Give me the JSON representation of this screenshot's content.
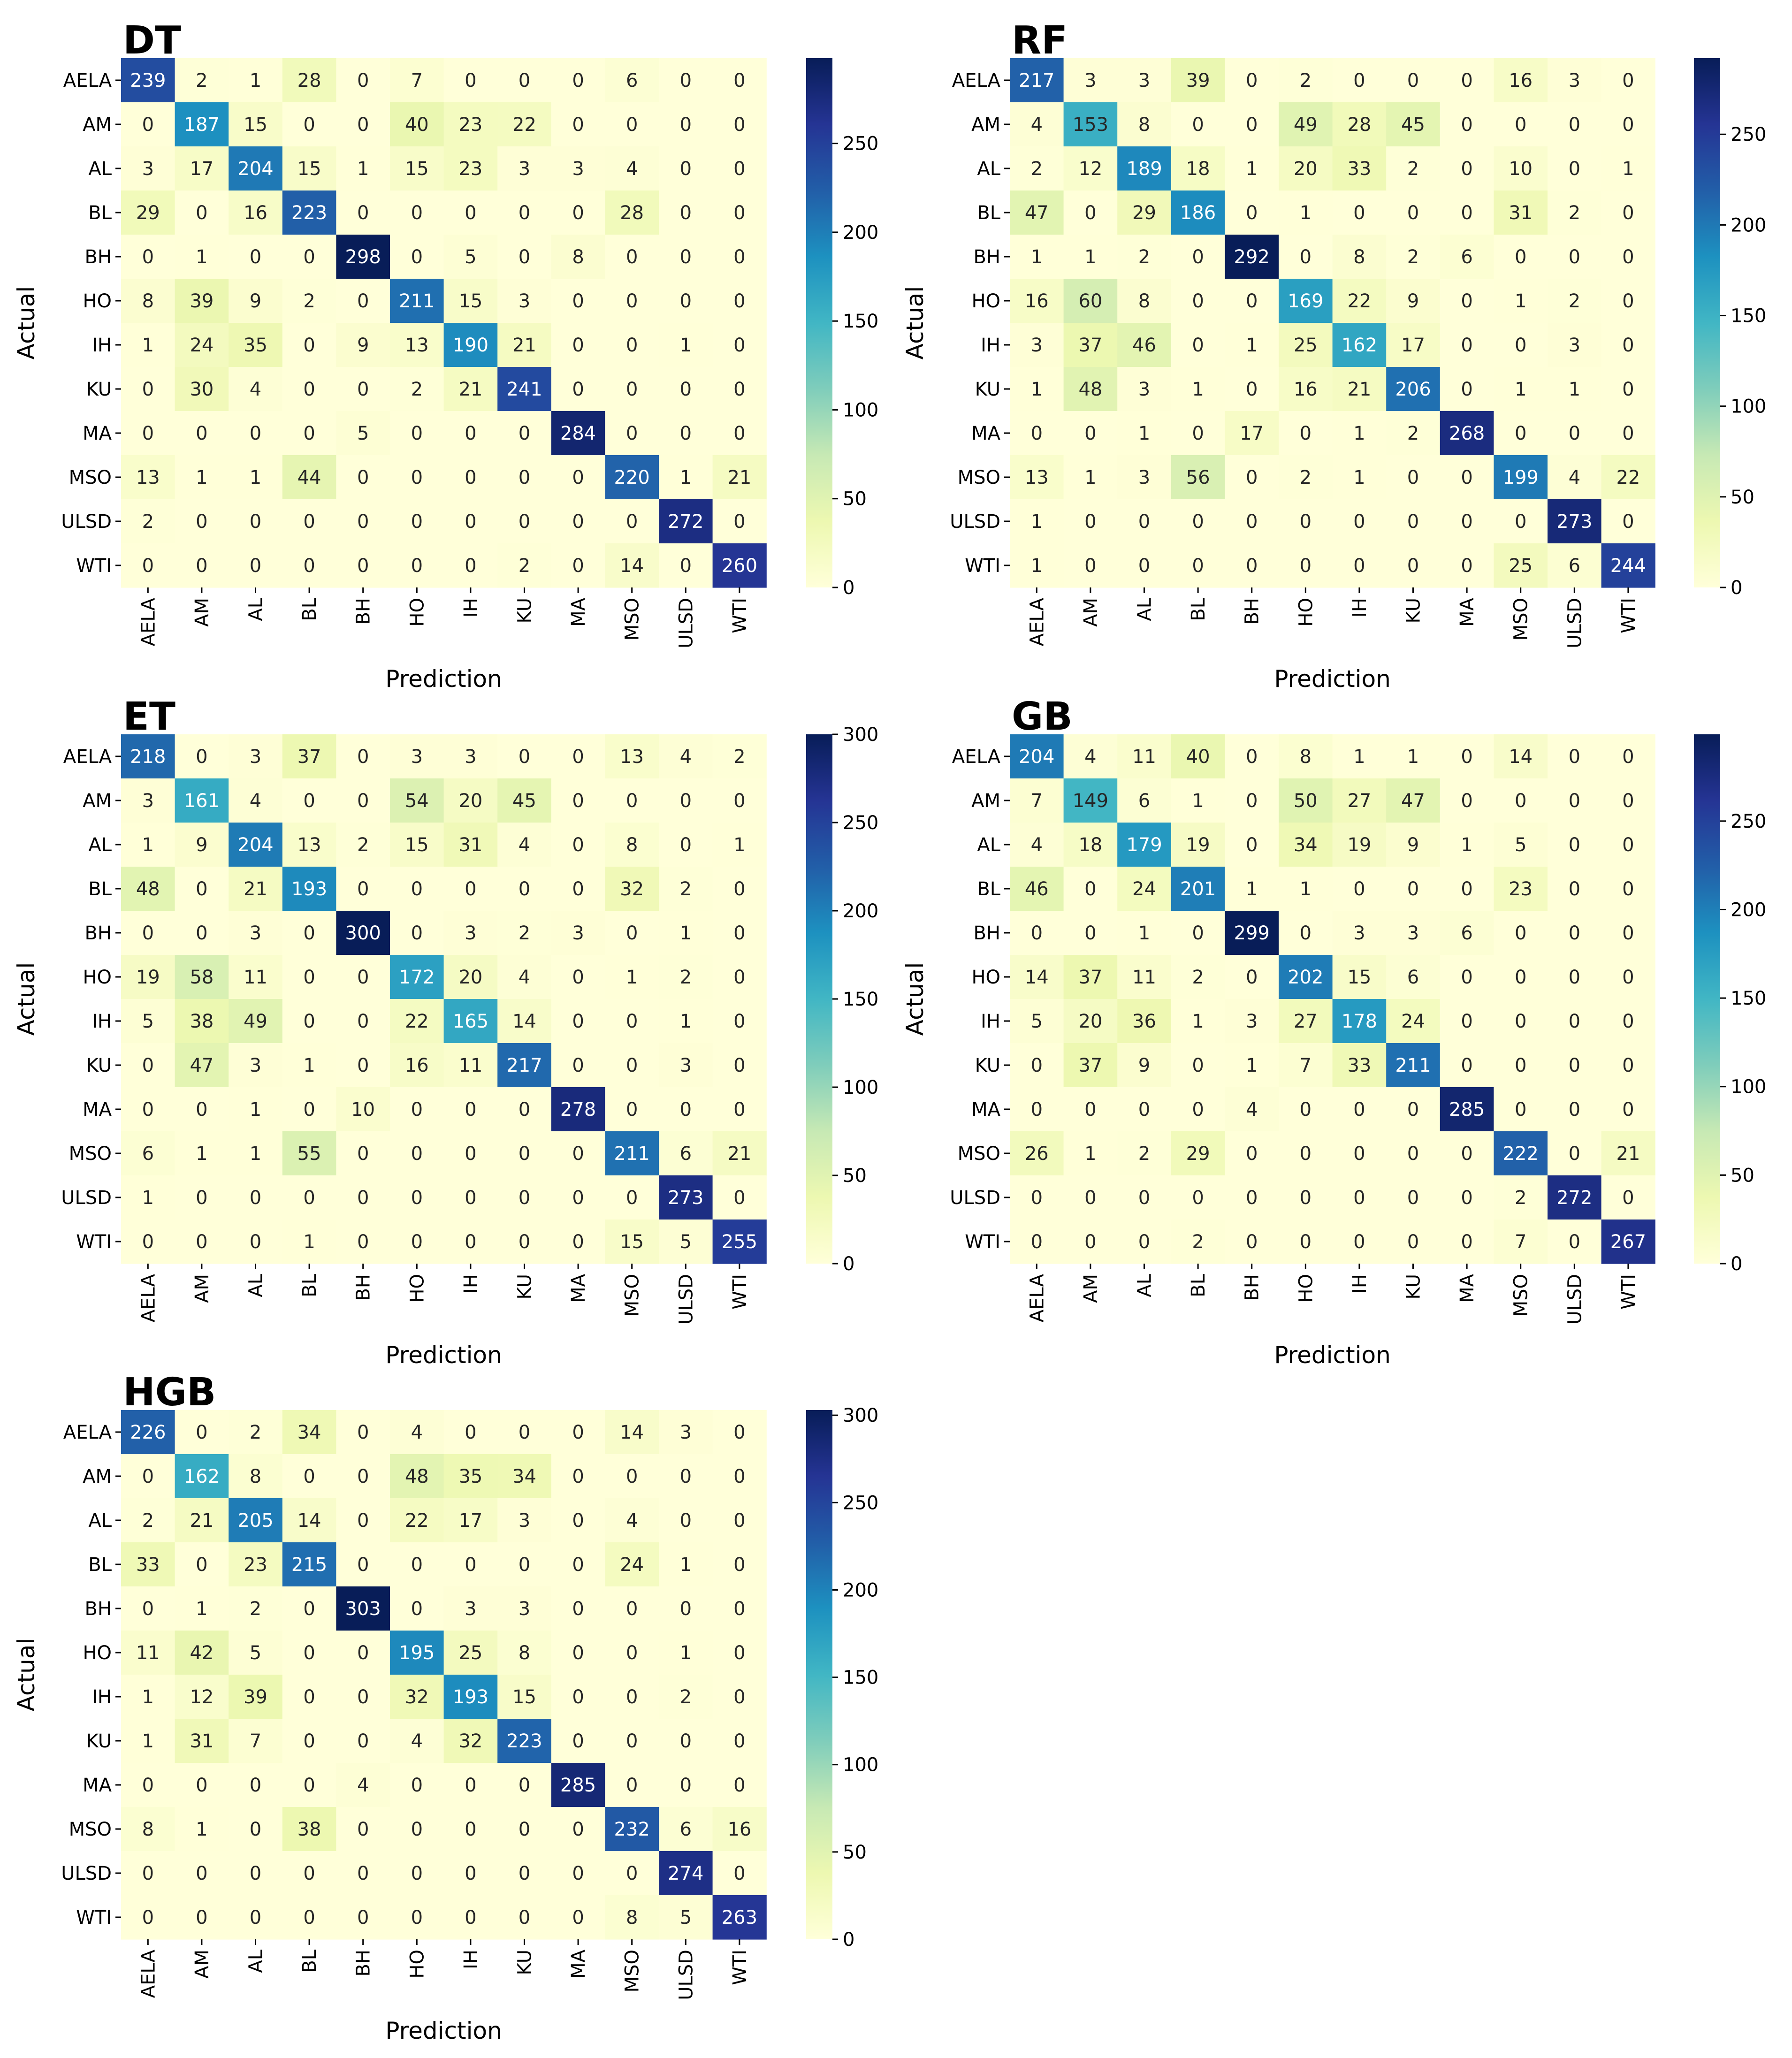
{
  "labels": [
    "AELA",
    "AM",
    "AL",
    "BL",
    "BH",
    "HO",
    "IH",
    "KU",
    "MA",
    "MSO",
    "ULSD",
    "WTI"
  ],
  "chart_data": [
    {
      "type": "heatmap",
      "title": "DT",
      "xlabel": "Prediction",
      "ylabel": "Actual",
      "colorbar_range": [
        0,
        298
      ],
      "colorbar_ticks": [
        0,
        50,
        100,
        150,
        200,
        250
      ],
      "matrix": [
        [
          239,
          2,
          1,
          28,
          0,
          7,
          0,
          0,
          0,
          6,
          0,
          0
        ],
        [
          0,
          187,
          15,
          0,
          0,
          40,
          23,
          22,
          0,
          0,
          0,
          0
        ],
        [
          3,
          17,
          204,
          15,
          1,
          15,
          23,
          3,
          3,
          4,
          0,
          0
        ],
        [
          29,
          0,
          16,
          223,
          0,
          0,
          0,
          0,
          0,
          28,
          0,
          0
        ],
        [
          0,
          1,
          0,
          0,
          298,
          0,
          5,
          0,
          8,
          0,
          0,
          0
        ],
        [
          8,
          39,
          9,
          2,
          0,
          211,
          15,
          3,
          0,
          0,
          0,
          0
        ],
        [
          1,
          24,
          35,
          0,
          9,
          13,
          190,
          21,
          0,
          0,
          1,
          0
        ],
        [
          0,
          30,
          4,
          0,
          0,
          2,
          21,
          241,
          0,
          0,
          0,
          0
        ],
        [
          0,
          0,
          0,
          0,
          5,
          0,
          0,
          0,
          284,
          0,
          0,
          0
        ],
        [
          13,
          1,
          1,
          44,
          0,
          0,
          0,
          0,
          0,
          220,
          1,
          21
        ],
        [
          2,
          0,
          0,
          0,
          0,
          0,
          0,
          0,
          0,
          0,
          272,
          0
        ],
        [
          0,
          0,
          0,
          0,
          0,
          0,
          0,
          2,
          0,
          14,
          0,
          260
        ]
      ]
    },
    {
      "type": "heatmap",
      "title": "RF",
      "xlabel": "Prediction",
      "ylabel": "Actual",
      "colorbar_range": [
        0,
        292
      ],
      "colorbar_ticks": [
        0,
        50,
        100,
        150,
        200,
        250
      ],
      "matrix": [
        [
          217,
          3,
          3,
          39,
          0,
          2,
          0,
          0,
          0,
          16,
          3,
          0
        ],
        [
          4,
          153,
          8,
          0,
          0,
          49,
          28,
          45,
          0,
          0,
          0,
          0
        ],
        [
          2,
          12,
          189,
          18,
          1,
          20,
          33,
          2,
          0,
          10,
          0,
          1
        ],
        [
          47,
          0,
          29,
          186,
          0,
          1,
          0,
          0,
          0,
          31,
          2,
          0
        ],
        [
          1,
          1,
          2,
          0,
          292,
          0,
          8,
          2,
          6,
          0,
          0,
          0
        ],
        [
          16,
          60,
          8,
          0,
          0,
          169,
          22,
          9,
          0,
          1,
          2,
          0
        ],
        [
          3,
          37,
          46,
          0,
          1,
          25,
          162,
          17,
          0,
          0,
          3,
          0
        ],
        [
          1,
          48,
          3,
          1,
          0,
          16,
          21,
          206,
          0,
          1,
          1,
          0
        ],
        [
          0,
          0,
          1,
          0,
          17,
          0,
          1,
          2,
          268,
          0,
          0,
          0
        ],
        [
          13,
          1,
          3,
          56,
          0,
          2,
          1,
          0,
          0,
          199,
          4,
          22
        ],
        [
          1,
          0,
          0,
          0,
          0,
          0,
          0,
          0,
          0,
          0,
          273,
          0
        ],
        [
          1,
          0,
          0,
          0,
          0,
          0,
          0,
          0,
          0,
          25,
          6,
          244
        ]
      ]
    },
    {
      "type": "heatmap",
      "title": "ET",
      "xlabel": "Prediction",
      "ylabel": "Actual",
      "colorbar_range": [
        0,
        300
      ],
      "colorbar_ticks": [
        0,
        50,
        100,
        150,
        200,
        250,
        300
      ],
      "matrix": [
        [
          218,
          0,
          3,
          37,
          0,
          3,
          3,
          0,
          0,
          13,
          4,
          2
        ],
        [
          3,
          161,
          4,
          0,
          0,
          54,
          20,
          45,
          0,
          0,
          0,
          0
        ],
        [
          1,
          9,
          204,
          13,
          2,
          15,
          31,
          4,
          0,
          8,
          0,
          1
        ],
        [
          48,
          0,
          21,
          193,
          0,
          0,
          0,
          0,
          0,
          32,
          2,
          0
        ],
        [
          0,
          0,
          3,
          0,
          300,
          0,
          3,
          2,
          3,
          0,
          1,
          0
        ],
        [
          19,
          58,
          11,
          0,
          0,
          172,
          20,
          4,
          0,
          1,
          2,
          0
        ],
        [
          5,
          38,
          49,
          0,
          0,
          22,
          165,
          14,
          0,
          0,
          1,
          0
        ],
        [
          0,
          47,
          3,
          1,
          0,
          16,
          11,
          217,
          0,
          0,
          3,
          0
        ],
        [
          0,
          0,
          1,
          0,
          10,
          0,
          0,
          0,
          278,
          0,
          0,
          0
        ],
        [
          6,
          1,
          1,
          55,
          0,
          0,
          0,
          0,
          0,
          211,
          6,
          21
        ],
        [
          1,
          0,
          0,
          0,
          0,
          0,
          0,
          0,
          0,
          0,
          273,
          0
        ],
        [
          0,
          0,
          0,
          1,
          0,
          0,
          0,
          0,
          0,
          15,
          5,
          255
        ]
      ]
    },
    {
      "type": "heatmap",
      "title": "GB",
      "xlabel": "Prediction",
      "ylabel": "Actual",
      "colorbar_range": [
        0,
        299
      ],
      "colorbar_ticks": [
        0,
        50,
        100,
        150,
        200,
        250
      ],
      "matrix": [
        [
          204,
          4,
          11,
          40,
          0,
          8,
          1,
          1,
          0,
          14,
          0,
          0
        ],
        [
          7,
          149,
          6,
          1,
          0,
          50,
          27,
          47,
          0,
          0,
          0,
          0
        ],
        [
          4,
          18,
          179,
          19,
          0,
          34,
          19,
          9,
          1,
          5,
          0,
          0
        ],
        [
          46,
          0,
          24,
          201,
          1,
          1,
          0,
          0,
          0,
          23,
          0,
          0
        ],
        [
          0,
          0,
          1,
          0,
          299,
          0,
          3,
          3,
          6,
          0,
          0,
          0
        ],
        [
          14,
          37,
          11,
          2,
          0,
          202,
          15,
          6,
          0,
          0,
          0,
          0
        ],
        [
          5,
          20,
          36,
          1,
          3,
          27,
          178,
          24,
          0,
          0,
          0,
          0
        ],
        [
          0,
          37,
          9,
          0,
          1,
          7,
          33,
          211,
          0,
          0,
          0,
          0
        ],
        [
          0,
          0,
          0,
          0,
          4,
          0,
          0,
          0,
          285,
          0,
          0,
          0
        ],
        [
          26,
          1,
          2,
          29,
          0,
          0,
          0,
          0,
          0,
          222,
          0,
          21
        ],
        [
          0,
          0,
          0,
          0,
          0,
          0,
          0,
          0,
          0,
          2,
          272,
          0
        ],
        [
          0,
          0,
          0,
          2,
          0,
          0,
          0,
          0,
          0,
          7,
          0,
          267
        ]
      ]
    },
    {
      "type": "heatmap",
      "title": "HGB",
      "xlabel": "Prediction",
      "ylabel": "Actual",
      "colorbar_range": [
        0,
        303
      ],
      "colorbar_ticks": [
        0,
        50,
        100,
        150,
        200,
        250,
        300
      ],
      "matrix": [
        [
          226,
          0,
          2,
          34,
          0,
          4,
          0,
          0,
          0,
          14,
          3,
          0
        ],
        [
          0,
          162,
          8,
          0,
          0,
          48,
          35,
          34,
          0,
          0,
          0,
          0
        ],
        [
          2,
          21,
          205,
          14,
          0,
          22,
          17,
          3,
          0,
          4,
          0,
          0
        ],
        [
          33,
          0,
          23,
          215,
          0,
          0,
          0,
          0,
          0,
          24,
          1,
          0
        ],
        [
          0,
          1,
          2,
          0,
          303,
          0,
          3,
          3,
          0,
          0,
          0,
          0
        ],
        [
          11,
          42,
          5,
          0,
          0,
          195,
          25,
          8,
          0,
          0,
          1,
          0
        ],
        [
          1,
          12,
          39,
          0,
          0,
          32,
          193,
          15,
          0,
          0,
          2,
          0
        ],
        [
          1,
          31,
          7,
          0,
          0,
          4,
          32,
          223,
          0,
          0,
          0,
          0
        ],
        [
          0,
          0,
          0,
          0,
          4,
          0,
          0,
          0,
          285,
          0,
          0,
          0
        ],
        [
          8,
          1,
          0,
          38,
          0,
          0,
          0,
          0,
          0,
          232,
          6,
          16
        ],
        [
          0,
          0,
          0,
          0,
          0,
          0,
          0,
          0,
          0,
          0,
          274,
          0
        ],
        [
          0,
          0,
          0,
          0,
          0,
          0,
          0,
          0,
          0,
          8,
          5,
          263
        ]
      ]
    }
  ]
}
